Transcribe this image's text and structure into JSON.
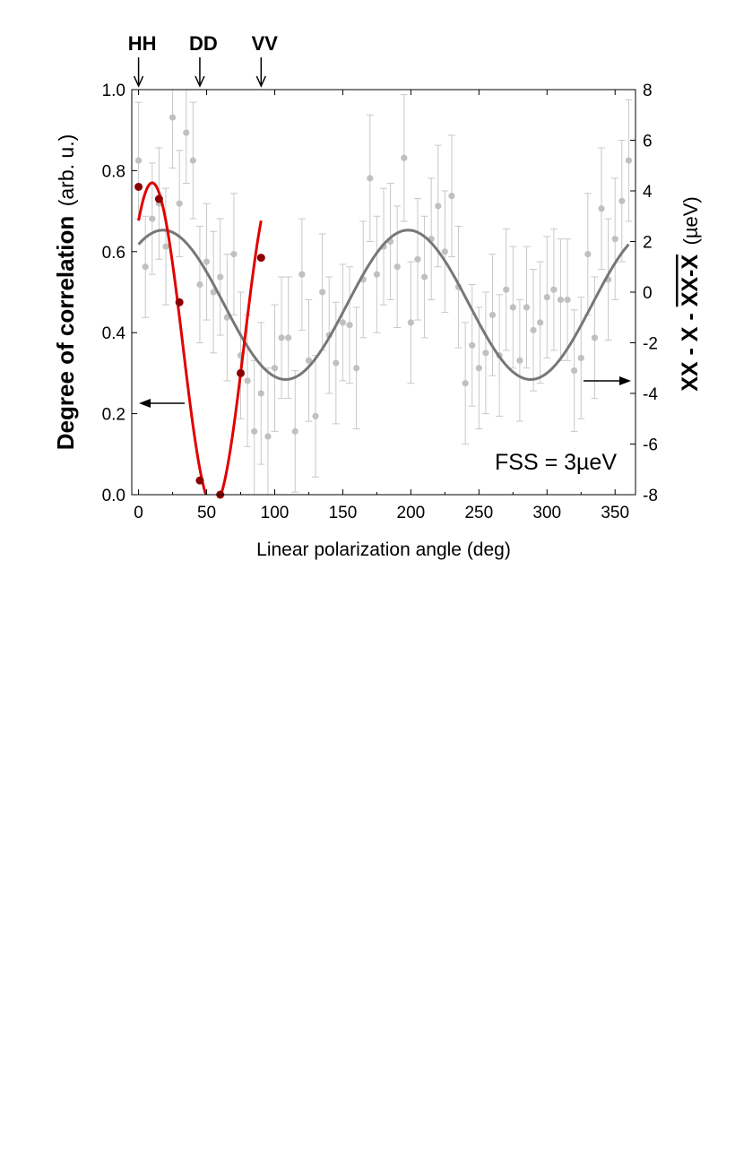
{
  "chart_data": {
    "type": "scatter",
    "xlabel": "Linear polarization angle (deg)",
    "ylabel_left": "Degree of correlation (arb. u.)",
    "ylabel_left_bold": "Degree of correlation",
    "ylabel_left_unit": "(arb. u.)",
    "ylabel_right": "XX - X - XX-X (µeV)",
    "ylabel_right_bold_part1": "XX - X - ",
    "ylabel_right_overlined": "XX-X",
    "ylabel_right_unit": "(µeV)",
    "xlim": [
      -5,
      365
    ],
    "ylim_left": [
      0,
      1.0
    ],
    "ylim_right": [
      -8,
      8
    ],
    "x_ticks": [
      0,
      50,
      100,
      150,
      200,
      250,
      300,
      350
    ],
    "x_tick_labels": [
      "0",
      "50",
      "100",
      "150",
      "200",
      "250",
      "300",
      "350"
    ],
    "y_left_ticks": [
      0,
      0.2,
      0.4,
      0.6,
      0.8,
      1.0
    ],
    "y_left_tick_labels": [
      "0.0",
      "0.2",
      "0.4",
      "0.6",
      "0.8",
      "1.0"
    ],
    "y_right_ticks": [
      -8,
      -6,
      -4,
      -2,
      0,
      2,
      4,
      6,
      8
    ],
    "y_right_tick_labels": [
      "-8",
      "-6",
      "-4",
      "-2",
      "0",
      "2",
      "4",
      "6",
      "8"
    ],
    "annotation": "FSS = 3µeV",
    "basis_markers": [
      {
        "label": "HH",
        "x": 0
      },
      {
        "label": "DD",
        "x": 45
      },
      {
        "label": "VV",
        "x": 90
      }
    ],
    "series": [
      {
        "axis": "right",
        "kind": "scatter-errorbar",
        "color": "#c0c0c0",
        "points": [
          {
            "x": 0,
            "y": 5.2,
            "err": 2.3
          },
          {
            "x": 5,
            "y": 1.0,
            "err": 2.0
          },
          {
            "x": 10,
            "y": 2.9,
            "err": 2.2
          },
          {
            "x": 15,
            "y": 3.5,
            "err": 2.2
          },
          {
            "x": 20,
            "y": 1.8,
            "err": 2.3
          },
          {
            "x": 25,
            "y": 6.9,
            "err": 2.0
          },
          {
            "x": 30,
            "y": 3.5,
            "err": 2.1
          },
          {
            "x": 35,
            "y": 6.3,
            "err": 2.0
          },
          {
            "x": 40,
            "y": 5.2,
            "err": 2.3
          },
          {
            "x": 45,
            "y": 0.3,
            "err": 2.3
          },
          {
            "x": 50,
            "y": 1.2,
            "err": 2.3
          },
          {
            "x": 55,
            "y": 0.0,
            "err": 2.4
          },
          {
            "x": 60,
            "y": 0.6,
            "err": 2.3
          },
          {
            "x": 65,
            "y": -1.0,
            "err": 2.5
          },
          {
            "x": 70,
            "y": 1.5,
            "err": 2.4
          },
          {
            "x": 75,
            "y": -2.5,
            "err": 2.5
          },
          {
            "x": 80,
            "y": -3.5,
            "err": 2.6
          },
          {
            "x": 85,
            "y": -5.5,
            "err": 2.8
          },
          {
            "x": 90,
            "y": -4.0,
            "err": 2.8
          },
          {
            "x": 95,
            "y": -5.7,
            "err": 2.7
          },
          {
            "x": 100,
            "y": -3.0,
            "err": 2.5
          },
          {
            "x": 105,
            "y": -1.8,
            "err": 2.4
          },
          {
            "x": 110,
            "y": -1.8,
            "err": 2.4
          },
          {
            "x": 115,
            "y": -5.5,
            "err": 2.4
          },
          {
            "x": 120,
            "y": 0.7,
            "err": 2.2
          },
          {
            "x": 125,
            "y": -2.7,
            "err": 2.4
          },
          {
            "x": 130,
            "y": -4.9,
            "err": 2.4
          },
          {
            "x": 135,
            "y": 0.0,
            "err": 2.3
          },
          {
            "x": 140,
            "y": -1.7,
            "err": 2.3
          },
          {
            "x": 145,
            "y": -2.8,
            "err": 2.4
          },
          {
            "x": 150,
            "y": -1.2,
            "err": 2.3
          },
          {
            "x": 155,
            "y": -1.3,
            "err": 2.3
          },
          {
            "x": 160,
            "y": -3.0,
            "err": 2.4
          },
          {
            "x": 165,
            "y": 0.5,
            "err": 2.3
          },
          {
            "x": 170,
            "y": 4.5,
            "err": 2.5
          },
          {
            "x": 175,
            "y": 0.7,
            "err": 2.3
          },
          {
            "x": 180,
            "y": 1.8,
            "err": 2.3
          },
          {
            "x": 185,
            "y": 2.0,
            "err": 2.3
          },
          {
            "x": 190,
            "y": 1.0,
            "err": 2.4
          },
          {
            "x": 195,
            "y": 5.3,
            "err": 2.5
          },
          {
            "x": 200,
            "y": -1.2,
            "err": 2.4
          },
          {
            "x": 205,
            "y": 1.3,
            "err": 2.4
          },
          {
            "x": 210,
            "y": 0.6,
            "err": 2.4
          },
          {
            "x": 215,
            "y": 2.1,
            "err": 2.4
          },
          {
            "x": 220,
            "y": 3.4,
            "err": 2.4
          },
          {
            "x": 225,
            "y": 1.6,
            "err": 2.4
          },
          {
            "x": 230,
            "y": 3.8,
            "err": 2.4
          },
          {
            "x": 235,
            "y": 0.2,
            "err": 2.4
          },
          {
            "x": 240,
            "y": -3.6,
            "err": 2.4
          },
          {
            "x": 245,
            "y": -2.1,
            "err": 2.4
          },
          {
            "x": 250,
            "y": -3.0,
            "err": 2.4
          },
          {
            "x": 255,
            "y": -2.4,
            "err": 2.4
          },
          {
            "x": 260,
            "y": -0.9,
            "err": 2.4
          },
          {
            "x": 265,
            "y": -2.5,
            "err": 2.4
          },
          {
            "x": 270,
            "y": 0.1,
            "err": 2.4
          },
          {
            "x": 275,
            "y": -0.6,
            "err": 2.4
          },
          {
            "x": 280,
            "y": -2.7,
            "err": 2.4
          },
          {
            "x": 285,
            "y": -0.6,
            "err": 2.4
          },
          {
            "x": 290,
            "y": -1.5,
            "err": 2.4
          },
          {
            "x": 295,
            "y": -1.2,
            "err": 2.4
          },
          {
            "x": 300,
            "y": -0.2,
            "err": 2.4
          },
          {
            "x": 305,
            "y": 0.1,
            "err": 2.4
          },
          {
            "x": 310,
            "y": -0.3,
            "err": 2.4
          },
          {
            "x": 315,
            "y": -0.3,
            "err": 2.4
          },
          {
            "x": 320,
            "y": -3.1,
            "err": 2.4
          },
          {
            "x": 325,
            "y": -2.6,
            "err": 2.4
          },
          {
            "x": 330,
            "y": 1.5,
            "err": 2.4
          },
          {
            "x": 335,
            "y": -1.8,
            "err": 2.4
          },
          {
            "x": 340,
            "y": 3.3,
            "err": 2.4
          },
          {
            "x": 345,
            "y": 0.5,
            "err": 2.4
          },
          {
            "x": 350,
            "y": 2.1,
            "err": 2.4
          },
          {
            "x": 355,
            "y": 3.6,
            "err": 2.4
          },
          {
            "x": 360,
            "y": 5.2,
            "err": 2.4
          }
        ]
      },
      {
        "axis": "right",
        "kind": "line",
        "color": "#777777",
        "fit": {
          "amplitude": 2.95,
          "offset": -0.5,
          "period": 180,
          "phase_deg": 18
        },
        "x_range": [
          0,
          360
        ]
      },
      {
        "axis": "left",
        "kind": "scatter",
        "color": "#8b0000",
        "points": [
          {
            "x": 0,
            "y": 0.76
          },
          {
            "x": 15,
            "y": 0.73
          },
          {
            "x": 30,
            "y": 0.475
          },
          {
            "x": 45,
            "y": 0.035
          },
          {
            "x": 60,
            "y": 0.0
          },
          {
            "x": 75,
            "y": 0.3
          },
          {
            "x": 90,
            "y": 0.585
          }
        ]
      },
      {
        "axis": "left",
        "kind": "line",
        "color": "#e00000",
        "fit": {
          "amplitude": 0.4,
          "offset": 0.37,
          "period": 90,
          "phase_deg": 10
        },
        "x_range": [
          0,
          90
        ]
      }
    ],
    "left_arrow_points_to": "left",
    "right_arrow_points_to": "right"
  }
}
